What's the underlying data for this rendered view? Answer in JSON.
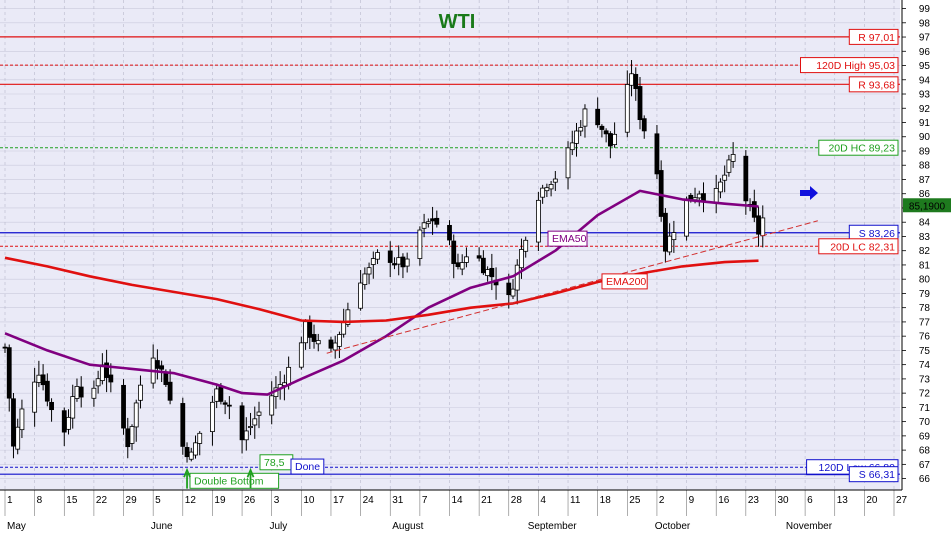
{
  "chart_data": {
    "type": "candlestick",
    "title": "WTI",
    "title_color": "#1a7a1a",
    "background": "#eaeaf7",
    "grid": true,
    "price_axis_position": "right",
    "ylim": [
      65.2,
      99.6
    ],
    "y_ticks": [
      66,
      67,
      68,
      69,
      70,
      71,
      72,
      73,
      74,
      75,
      76,
      77,
      78,
      79,
      80,
      81,
      82,
      83,
      84,
      85,
      86,
      87,
      88,
      89,
      90,
      91,
      92,
      93,
      94,
      95,
      96,
      97,
      98,
      99
    ],
    "x_range_days": [
      0,
      210
    ],
    "x_day_labels": [
      {
        "day": 0,
        "text": "1"
      },
      {
        "day": 7,
        "text": "8"
      },
      {
        "day": 14,
        "text": "15"
      },
      {
        "day": 21,
        "text": "22"
      },
      {
        "day": 28,
        "text": "29"
      },
      {
        "day": 35,
        "text": "5"
      },
      {
        "day": 42,
        "text": "12"
      },
      {
        "day": 49,
        "text": "19"
      },
      {
        "day": 56,
        "text": "26"
      },
      {
        "day": 63,
        "text": "3"
      },
      {
        "day": 70,
        "text": "10"
      },
      {
        "day": 77,
        "text": "17"
      },
      {
        "day": 84,
        "text": "24"
      },
      {
        "day": 91,
        "text": "31"
      },
      {
        "day": 98,
        "text": "7"
      },
      {
        "day": 105,
        "text": "14"
      },
      {
        "day": 112,
        "text": "21"
      },
      {
        "day": 119,
        "text": "28"
      },
      {
        "day": 126,
        "text": "4"
      },
      {
        "day": 133,
        "text": "11"
      },
      {
        "day": 140,
        "text": "18"
      },
      {
        "day": 147,
        "text": "25"
      },
      {
        "day": 154,
        "text": "2"
      },
      {
        "day": 161,
        "text": "9"
      },
      {
        "day": 168,
        "text": "16"
      },
      {
        "day": 175,
        "text": "23"
      },
      {
        "day": 182,
        "text": "30"
      },
      {
        "day": 189,
        "text": "6"
      },
      {
        "day": 196,
        "text": "13"
      },
      {
        "day": 203,
        "text": "20"
      },
      {
        "day": 210,
        "text": "27"
      }
    ],
    "x_month_labels": [
      {
        "day": 0,
        "text": "May"
      },
      {
        "day": 34,
        "text": "June"
      },
      {
        "day": 62,
        "text": "July"
      },
      {
        "day": 91,
        "text": "August"
      },
      {
        "day": 123,
        "text": "September"
      },
      {
        "day": 153,
        "text": "October"
      },
      {
        "day": 184,
        "text": "November"
      }
    ],
    "last_price": {
      "value": 85.19,
      "label": "85,1900"
    },
    "ohlc_anchor_closes": [
      {
        "day": 0,
        "close": 75.2
      },
      {
        "day": 2,
        "close": 68.2
      },
      {
        "day": 5,
        "close": 72.0
      },
      {
        "day": 8,
        "close": 73.6
      },
      {
        "day": 11,
        "close": 70.8
      },
      {
        "day": 14,
        "close": 69.4
      },
      {
        "day": 17,
        "close": 72.8
      },
      {
        "day": 20,
        "close": 70.8
      },
      {
        "day": 23,
        "close": 74.2
      },
      {
        "day": 26,
        "close": 71.5
      },
      {
        "day": 29,
        "close": 68.5
      },
      {
        "day": 32,
        "close": 72.6
      },
      {
        "day": 35,
        "close": 74.8
      },
      {
        "day": 38,
        "close": 72.9
      },
      {
        "day": 41,
        "close": 68.6
      },
      {
        "day": 44,
        "close": 67.6
      },
      {
        "day": 47,
        "close": 70.0
      },
      {
        "day": 50,
        "close": 72.1
      },
      {
        "day": 53,
        "close": 71.2
      },
      {
        "day": 56,
        "close": 68.7
      },
      {
        "day": 59,
        "close": 70.2
      },
      {
        "day": 62,
        "close": 71.5
      },
      {
        "day": 65,
        "close": 72.6
      },
      {
        "day": 68,
        "close": 74.2
      },
      {
        "day": 71,
        "close": 76.6
      },
      {
        "day": 74,
        "close": 75.4
      },
      {
        "day": 77,
        "close": 74.8
      },
      {
        "day": 80,
        "close": 77.0
      },
      {
        "day": 83,
        "close": 79.8
      },
      {
        "day": 86,
        "close": 80.6
      },
      {
        "day": 89,
        "close": 82.1
      },
      {
        "day": 92,
        "close": 81.2
      },
      {
        "day": 95,
        "close": 81.0
      },
      {
        "day": 98,
        "close": 83.4
      },
      {
        "day": 101,
        "close": 84.2
      },
      {
        "day": 104,
        "close": 83.3
      },
      {
        "day": 107,
        "close": 80.6
      },
      {
        "day": 110,
        "close": 82.4
      },
      {
        "day": 113,
        "close": 80.9
      },
      {
        "day": 116,
        "close": 79.9
      },
      {
        "day": 119,
        "close": 78.6
      },
      {
        "day": 122,
        "close": 82.0
      },
      {
        "day": 125,
        "close": 85.5
      },
      {
        "day": 128,
        "close": 86.8
      },
      {
        "day": 131,
        "close": 87.4
      },
      {
        "day": 134,
        "close": 89.6
      },
      {
        "day": 137,
        "close": 91.7
      },
      {
        "day": 140,
        "close": 91.2
      },
      {
        "day": 143,
        "close": 89.4
      },
      {
        "day": 146,
        "close": 91.9
      },
      {
        "day": 148,
        "close": 94.6
      },
      {
        "day": 150,
        "close": 91.5
      },
      {
        "day": 152,
        "close": 89.6
      },
      {
        "day": 154,
        "close": 87.5
      },
      {
        "day": 156,
        "close": 82.2
      },
      {
        "day": 158,
        "close": 83.6
      },
      {
        "day": 161,
        "close": 85.5
      },
      {
        "day": 164,
        "close": 86.2
      },
      {
        "day": 167,
        "close": 85.3
      },
      {
        "day": 170,
        "close": 87.3
      },
      {
        "day": 172,
        "close": 88.6
      },
      {
        "day": 174,
        "close": 86.4
      },
      {
        "day": 176,
        "close": 84.8
      },
      {
        "day": 178,
        "close": 83.3
      },
      {
        "day": 180,
        "close": 85.19
      }
    ],
    "series": [
      {
        "name": "EMA50",
        "color": "#800080",
        "points": [
          [
            0,
            76.2
          ],
          [
            10,
            75.0
          ],
          [
            20,
            74.0
          ],
          [
            30,
            73.7
          ],
          [
            40,
            73.4
          ],
          [
            50,
            72.6
          ],
          [
            56,
            72.0
          ],
          [
            62,
            71.9
          ],
          [
            70,
            73.0
          ],
          [
            80,
            74.3
          ],
          [
            90,
            76.0
          ],
          [
            100,
            78.0
          ],
          [
            110,
            79.4
          ],
          [
            120,
            80.2
          ],
          [
            130,
            82.0
          ],
          [
            140,
            84.5
          ],
          [
            150,
            86.2
          ],
          [
            160,
            85.6
          ],
          [
            170,
            85.3
          ],
          [
            178,
            85.1
          ]
        ]
      },
      {
        "name": "EMA200",
        "color": "#e01010",
        "points": [
          [
            0,
            81.5
          ],
          [
            10,
            80.9
          ],
          [
            20,
            80.2
          ],
          [
            30,
            79.6
          ],
          [
            40,
            79.1
          ],
          [
            50,
            78.6
          ],
          [
            60,
            77.9
          ],
          [
            70,
            77.1
          ],
          [
            80,
            77.0
          ],
          [
            90,
            77.1
          ],
          [
            100,
            77.5
          ],
          [
            110,
            78.0
          ],
          [
            120,
            78.3
          ],
          [
            130,
            79.0
          ],
          [
            140,
            79.8
          ],
          [
            150,
            80.4
          ],
          [
            160,
            80.9
          ],
          [
            170,
            81.2
          ],
          [
            178,
            81.3
          ]
        ]
      }
    ],
    "levels": [
      {
        "label": "R 97,01",
        "value": 97.01,
        "color": "#e01010",
        "style": "solid"
      },
      {
        "label": "120D High 95,03",
        "value": 95.03,
        "color": "#e01010",
        "style": "dashed"
      },
      {
        "label": "R 93,68",
        "value": 93.68,
        "color": "#e01010",
        "style": "solid"
      },
      {
        "label": "20D HC 89,23",
        "value": 89.23,
        "color": "#20a020",
        "style": "dashed"
      },
      {
        "label": "S 83,26",
        "value": 83.26,
        "color": "#1010cc",
        "style": "solid"
      },
      {
        "label": "20D LC 82,31",
        "value": 82.31,
        "color": "#e01010",
        "style": "dashed"
      },
      {
        "label": "120D Low 66,80",
        "value": 66.8,
        "color": "#1010cc",
        "style": "dashed"
      },
      {
        "label": "S 66,31",
        "value": 66.31,
        "color": "#1010cc",
        "style": "solid"
      }
    ],
    "annotations": [
      {
        "text": "EMA50",
        "color": "#800080"
      },
      {
        "text": "EMA200",
        "color": "#e01010"
      },
      {
        "text": "Double Bottom",
        "color": "#20a020"
      },
      {
        "text": "78,5",
        "color": "#20a020"
      },
      {
        "text": "Done",
        "color": "#1010cc"
      }
    ]
  }
}
